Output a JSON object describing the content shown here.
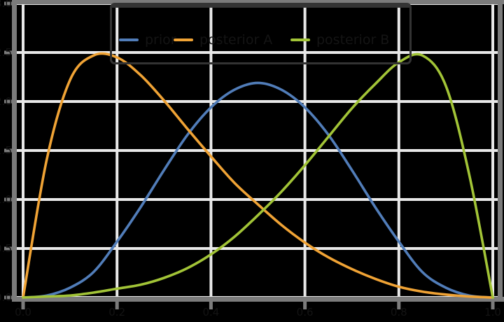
{
  "styles": {
    "background": "#000000",
    "gridline_color": "#e8e8e8",
    "spine_color": "#7b7b7b",
    "tick_color": "#7b7b7b",
    "text_color": "#141414",
    "legend_border_color": "#333333"
  },
  "legend": {
    "position": "upper center",
    "entries": [
      {
        "label": "prior",
        "color": "#517db9"
      },
      {
        "label": "posterior A",
        "color": "#f0a335"
      },
      {
        "label": "posterior B",
        "color": "#a2c437"
      }
    ]
  },
  "chart_data": {
    "type": "line",
    "title": "",
    "xlabel": "",
    "ylabel": "",
    "xlim": [
      0.0,
      1.0
    ],
    "ylim": [
      0.0,
      3.0
    ],
    "grid": true,
    "legend_position": "upper center",
    "x_ticks": [
      0.0,
      0.2,
      0.4,
      0.6,
      0.8,
      1.0
    ],
    "x_tick_labels": [
      "0.0",
      "0.2",
      "0.4",
      "0.6",
      "0.8",
      "1.0"
    ],
    "y_ticks": [
      0.0,
      0.5,
      1.0,
      1.5,
      2.0,
      2.5,
      3.0
    ],
    "y_tick_labels": [
      "0.0",
      "0.5",
      "1.0",
      "1.5",
      "2.0",
      "2.5",
      "3.0"
    ],
    "x": [
      0.0,
      0.05,
      0.1,
      0.15,
      0.2,
      0.25,
      0.3,
      0.35,
      0.4,
      0.45,
      0.5,
      0.55,
      0.6,
      0.65,
      0.7,
      0.75,
      0.8,
      0.85,
      0.9,
      0.95,
      1.0
    ],
    "series": [
      {
        "name": "prior",
        "color": "#517db9",
        "values": [
          0.0,
          0.02,
          0.1,
          0.26,
          0.57,
          0.92,
          1.3,
          1.66,
          1.94,
          2.12,
          2.19,
          2.12,
          1.94,
          1.66,
          1.3,
          0.92,
          0.57,
          0.26,
          0.1,
          0.02,
          0.0
        ]
      },
      {
        "name": "posterior A",
        "color": "#f0a335",
        "values": [
          0.0,
          1.4,
          2.22,
          2.47,
          2.45,
          2.27,
          2.01,
          1.72,
          1.44,
          1.17,
          0.95,
          0.74,
          0.56,
          0.41,
          0.29,
          0.19,
          0.11,
          0.06,
          0.03,
          0.01,
          0.0
        ]
      },
      {
        "name": "posterior B",
        "color": "#a2c437",
        "values": [
          0.0,
          0.01,
          0.02,
          0.05,
          0.09,
          0.13,
          0.2,
          0.3,
          0.44,
          0.62,
          0.84,
          1.08,
          1.35,
          1.64,
          1.93,
          2.18,
          2.4,
          2.47,
          2.16,
          1.25,
          0.0
        ]
      }
    ]
  }
}
